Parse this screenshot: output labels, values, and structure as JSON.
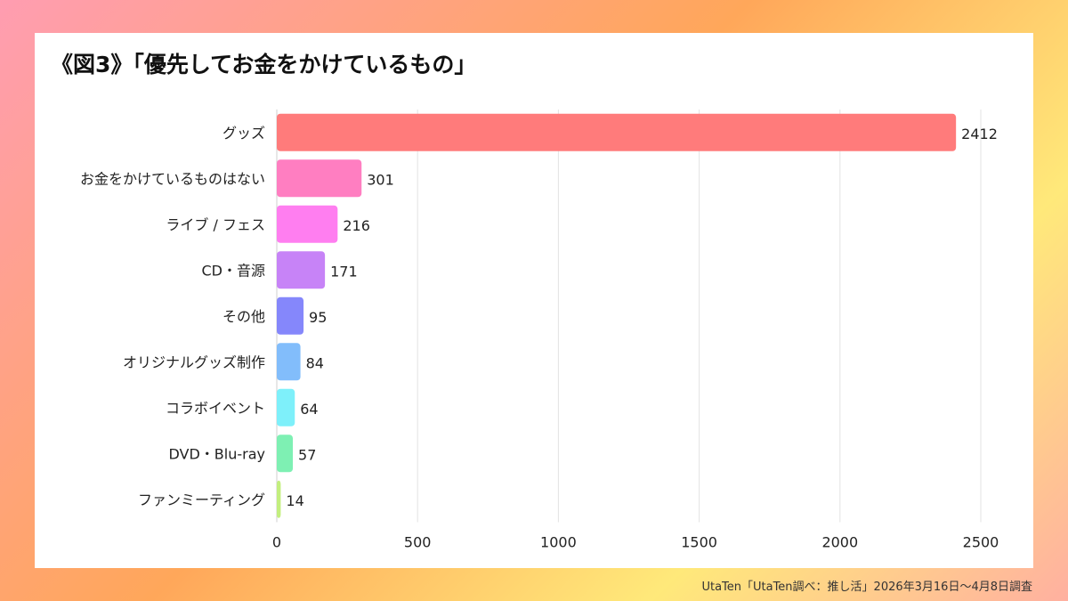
{
  "title": "《図3》「優先してお金をかけているもの」",
  "footer": "UtaTen「UtaTen調べ：推し活」2026年3月16日〜4月8日調査",
  "chart_data": {
    "type": "bar",
    "orientation": "horizontal",
    "title": "《図3》「優先してお金をかけているもの」",
    "categories": [
      "グッズ",
      "お金をかけているものはない",
      "ライブ / フェス",
      "CD・音源",
      "その他",
      "オリジナルグッズ制作",
      "コラボイベント",
      "DVD・Blu-ray",
      "ファンミーティング"
    ],
    "values": [
      2412,
      301,
      216,
      171,
      95,
      84,
      64,
      57,
      14
    ],
    "colors": [
      "#ff7b7b",
      "#ff7ec1",
      "#ff7ef0",
      "#c783f7",
      "#8587fb",
      "#82bdfb",
      "#7ef0fa",
      "#7ef0b3",
      "#c3ef7e"
    ],
    "xlim": [
      0,
      2500
    ],
    "xticks": [
      0,
      500,
      1000,
      1500,
      2000,
      2500
    ],
    "grid": "vertical",
    "legend": "none"
  }
}
